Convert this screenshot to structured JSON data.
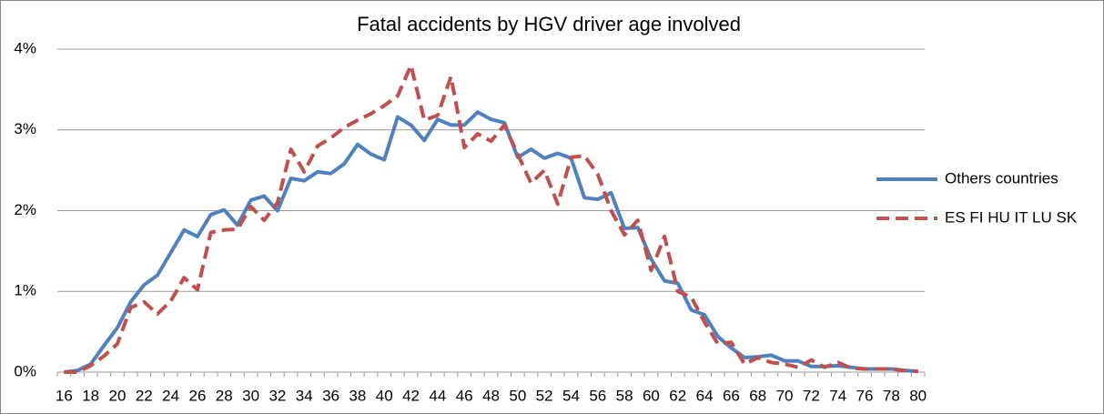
{
  "chart_data": {
    "type": "line",
    "title": "Fatal accidents by HGV driver age involved",
    "categories": [
      "16",
      null,
      "18",
      null,
      "20",
      null,
      "22",
      null,
      "24",
      null,
      "26",
      null,
      "28",
      null,
      "30",
      null,
      "32",
      null,
      "34",
      null,
      "36",
      null,
      "38",
      null,
      "40",
      null,
      "42",
      null,
      "44",
      null,
      "46",
      null,
      "48",
      null,
      "50",
      null,
      "52",
      null,
      "54",
      null,
      "56",
      null,
      "58",
      null,
      "60",
      null,
      "62",
      null,
      "64",
      null,
      "66",
      null,
      "68",
      null,
      "70",
      null,
      "72",
      null,
      "74",
      null,
      "76",
      null,
      "78",
      null,
      "80"
    ],
    "series": [
      {
        "name": "Others countries",
        "color": "#4f81bd",
        "dash": false,
        "values": [
          0.0,
          0.02,
          0.1,
          0.33,
          0.55,
          0.87,
          1.08,
          1.2,
          1.48,
          1.76,
          1.68,
          1.95,
          2.01,
          1.82,
          2.13,
          2.18,
          2.0,
          2.4,
          2.37,
          2.48,
          2.46,
          2.58,
          2.82,
          2.7,
          2.63,
          3.16,
          3.06,
          2.87,
          3.13,
          3.06,
          3.06,
          3.22,
          3.13,
          3.09,
          2.66,
          2.76,
          2.65,
          2.71,
          2.65,
          2.16,
          2.14,
          2.22,
          1.78,
          1.79,
          1.4,
          1.13,
          1.1,
          0.77,
          0.71,
          0.44,
          0.3,
          0.18,
          0.19,
          0.21,
          0.14,
          0.14,
          0.07,
          0.07,
          0.08,
          0.06,
          0.04,
          0.04,
          0.04,
          0.02,
          0.01
        ]
      },
      {
        "name": "ES FI HU IT LU SK",
        "color": "#c0504d",
        "dash": true,
        "values": [
          0.0,
          0.0,
          0.08,
          0.2,
          0.35,
          0.8,
          0.87,
          0.72,
          0.88,
          1.17,
          1.02,
          1.73,
          1.76,
          1.77,
          2.05,
          1.88,
          2.1,
          2.76,
          2.48,
          2.8,
          2.9,
          3.03,
          3.12,
          3.2,
          3.3,
          3.42,
          3.8,
          3.12,
          3.18,
          3.66,
          2.78,
          2.95,
          2.86,
          3.06,
          2.7,
          2.34,
          2.5,
          2.08,
          2.66,
          2.68,
          2.45,
          2.0,
          1.7,
          1.88,
          1.26,
          1.68,
          1.0,
          0.93,
          0.62,
          0.35,
          0.37,
          0.1,
          0.18,
          0.12,
          0.1,
          0.06,
          0.15,
          0.06,
          0.12,
          0.05,
          0.04,
          0.04,
          0.04,
          0.02,
          0.01
        ]
      }
    ],
    "ylim": [
      0,
      4
    ],
    "yticks": [
      {
        "value": 0,
        "label": "0%"
      },
      {
        "value": 1,
        "label": "1%"
      },
      {
        "value": 2,
        "label": "2%"
      },
      {
        "value": 3,
        "label": "3%"
      },
      {
        "value": 4,
        "label": "4%"
      }
    ],
    "grid": true,
    "legend": "right"
  }
}
